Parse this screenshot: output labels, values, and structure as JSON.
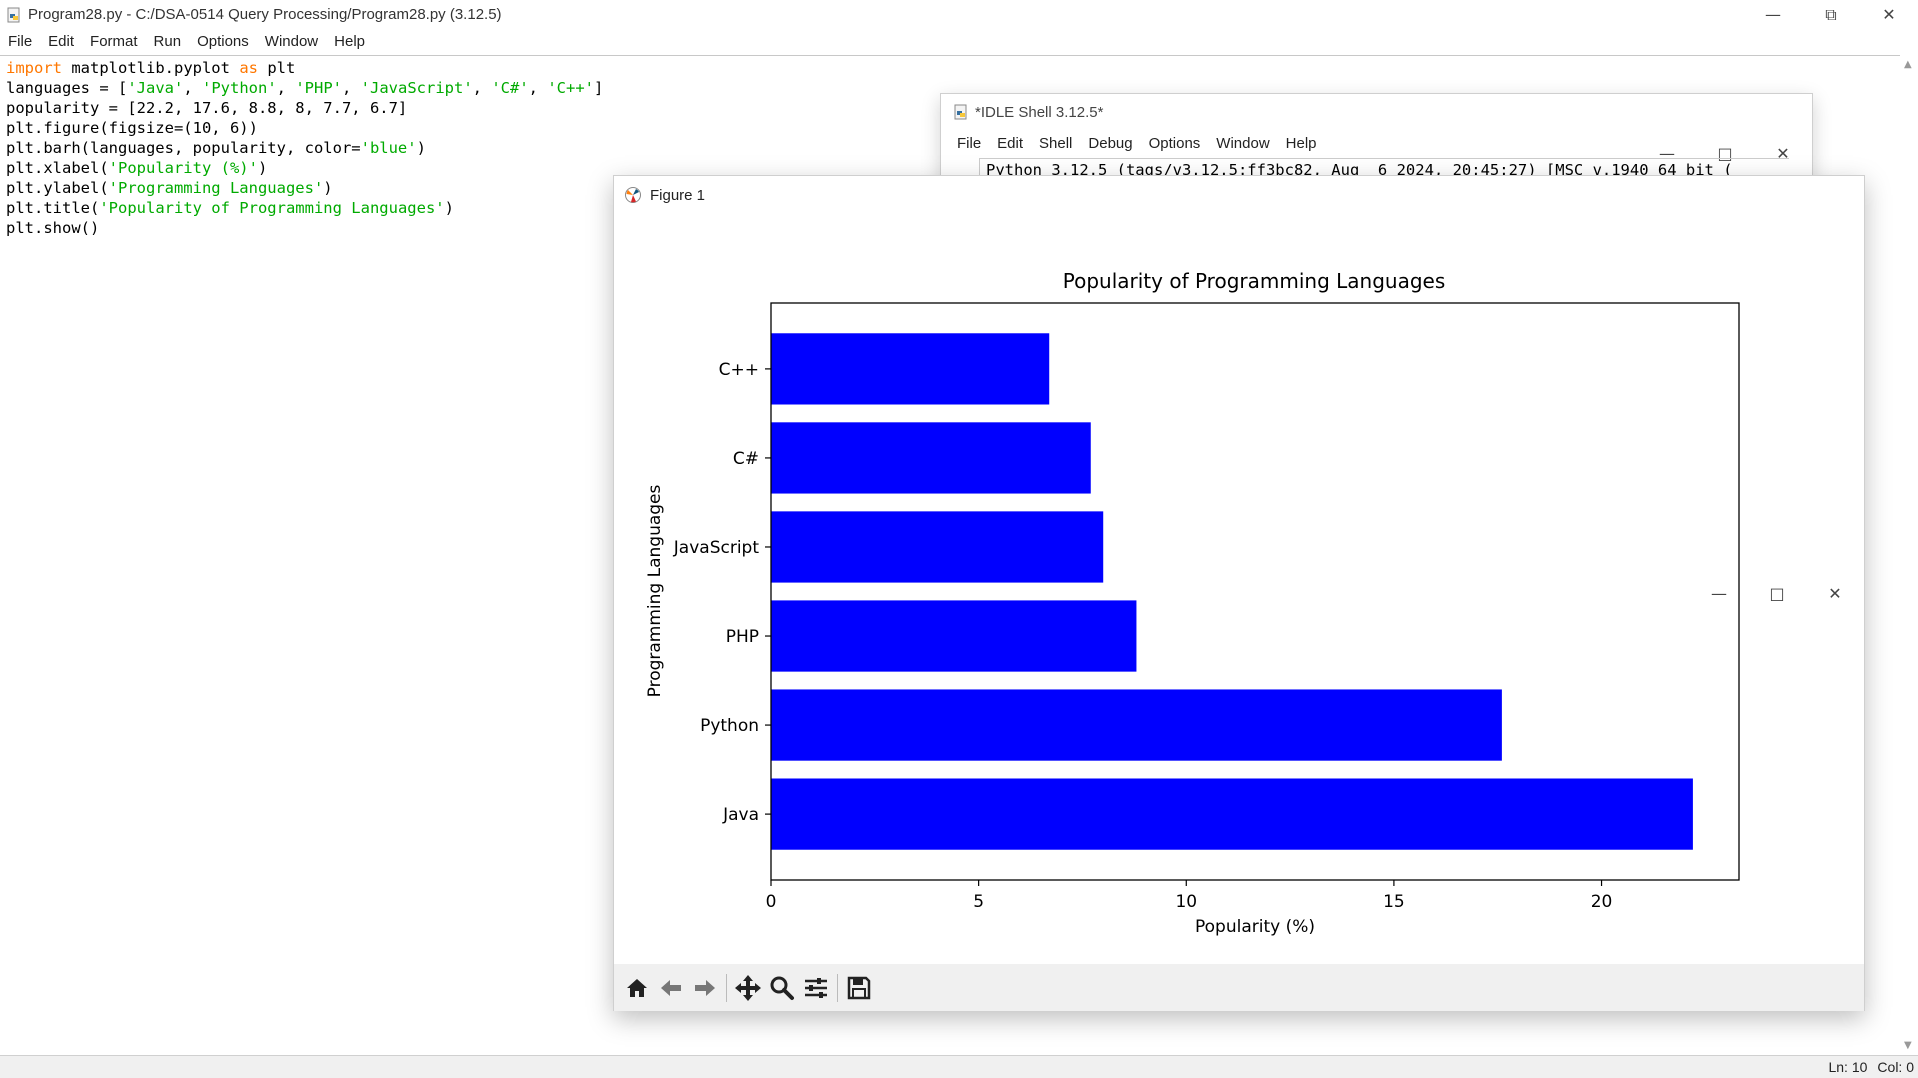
{
  "editor": {
    "title": "Program28.py - C:/DSA-0514 Query Processing/Program28.py (3.12.5)",
    "menus": [
      "File",
      "Edit",
      "Format",
      "Run",
      "Options",
      "Window",
      "Help"
    ],
    "code_lines": [
      [
        {
          "t": "import",
          "c": "kw"
        },
        {
          "t": " matplotlib.pyplot "
        },
        {
          "t": "as",
          "c": "kw"
        },
        {
          "t": " plt"
        }
      ],
      [
        {
          "t": "languages = ["
        },
        {
          "t": "'Java'",
          "c": "str"
        },
        {
          "t": ", "
        },
        {
          "t": "'Python'",
          "c": "str"
        },
        {
          "t": ", "
        },
        {
          "t": "'PHP'",
          "c": "str"
        },
        {
          "t": ", "
        },
        {
          "t": "'JavaScript'",
          "c": "str"
        },
        {
          "t": ", "
        },
        {
          "t": "'C#'",
          "c": "str"
        },
        {
          "t": ", "
        },
        {
          "t": "'C++'",
          "c": "str"
        },
        {
          "t": "]"
        }
      ],
      [
        {
          "t": "popularity = [22.2, 17.6, 8.8, 8, 7.7, 6.7]"
        }
      ],
      [
        {
          "t": "plt.figure(figsize=(10, 6))"
        }
      ],
      [
        {
          "t": "plt.barh(languages, popularity, color="
        },
        {
          "t": "'blue'",
          "c": "str"
        },
        {
          "t": ")"
        }
      ],
      [
        {
          "t": "plt.xlabel("
        },
        {
          "t": "'Popularity (%)'",
          "c": "str"
        },
        {
          "t": ")"
        }
      ],
      [
        {
          "t": "plt.ylabel("
        },
        {
          "t": "'Programming Languages'",
          "c": "str"
        },
        {
          "t": ")"
        }
      ],
      [
        {
          "t": "plt.title("
        },
        {
          "t": "'Popularity of Programming Languages'",
          "c": "str"
        },
        {
          "t": ")"
        }
      ],
      [
        {
          "t": "plt.show()"
        }
      ]
    ],
    "status": {
      "line": "Ln: 10",
      "col": "Col: 0"
    }
  },
  "shell": {
    "title": "*IDLE Shell 3.12.5*",
    "menus": [
      "File",
      "Edit",
      "Shell",
      "Debug",
      "Options",
      "Window",
      "Help"
    ],
    "text": "Python 3.12.5 (tags/v3.12.5:ff3bc82, Aug  6 2024, 20:45:27) [MSC v.1940 64 bit ("
  },
  "figure": {
    "title": "Figure 1",
    "toolbar": [
      "home-icon",
      "back-arrow-icon",
      "forward-arrow-icon",
      "pan-icon",
      "zoom-icon",
      "subplots-config-icon",
      "save-icon"
    ]
  },
  "chart_data": {
    "type": "bar",
    "orientation": "horizontal",
    "title": "Popularity of Programming Languages",
    "xlabel": "Popularity (%)",
    "ylabel": "Programming Languages",
    "categories": [
      "Java",
      "Python",
      "PHP",
      "JavaScript",
      "C#",
      "C++"
    ],
    "values": [
      22.2,
      17.6,
      8.8,
      8,
      7.7,
      6.7
    ],
    "xlim": [
      0,
      23.31
    ],
    "xticks": [
      0,
      5,
      10,
      15,
      20
    ],
    "bar_color": "#0000ff",
    "grid": false,
    "legend": false
  }
}
